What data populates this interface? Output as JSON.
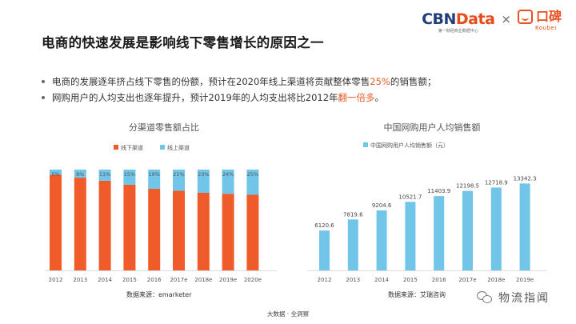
{
  "header": {
    "title": "电商的快速发展是影响线下零售增长的原因之一",
    "brand_cbn": "CBN",
    "brand_data": "Data",
    "brand_cbn_sub": "第一财经商业数据中心",
    "brand_separator": "×",
    "brand_koubei": "口碑",
    "brand_koubei_sub": "Koubei"
  },
  "bullets": [
    {
      "before": "电商的发展逐年挤占线下零售的份额，预计在2020年线上渠道将贡献整体零售",
      "highlight": "25%",
      "after": "的销售额；"
    },
    {
      "before": "网购用户的人均支出也逐年提升，预计2019年的人均支出将比2012年",
      "highlight": "翻一倍多",
      "after": "。"
    }
  ],
  "colors": {
    "offline": "#f05b2a",
    "online": "#71c5e8",
    "bar_blue": "#71c5e8",
    "highlight": "#e85a2a"
  },
  "chart_data": [
    {
      "type": "bar",
      "stacked": true,
      "percent": true,
      "title": "分渠道零售额占比",
      "categories": [
        "2012",
        "2013",
        "2014",
        "2015",
        "2016",
        "2017e",
        "2018e",
        "2019e",
        "2020e"
      ],
      "series": [
        {
          "name": "线下渠道",
          "values": [
            95,
            92,
            89,
            85,
            81,
            79,
            77,
            76,
            75
          ],
          "color": "#f05b2a"
        },
        {
          "name": "线上渠道",
          "values": [
            5,
            8,
            11,
            15,
            19,
            21,
            23,
            24,
            25
          ],
          "color": "#71c5e8"
        }
      ],
      "data_labels": [
        "5%",
        "8%",
        "11%",
        "15%",
        "19%",
        "21%",
        "23%",
        "24%",
        "25%"
      ],
      "legend_position": "top-left",
      "ylim": [
        0,
        100
      ],
      "source": "数据来源：emarketer"
    },
    {
      "type": "bar",
      "title": "中国网购用户人均销售额",
      "categories": [
        "2012",
        "2013",
        "2014",
        "2015",
        "2016",
        "2017e",
        "2018e",
        "2019e"
      ],
      "series": [
        {
          "name": "中国网购用户人均销售额（元）",
          "values": [
            6120.6,
            7819.6,
            9204.6,
            10521.7,
            11403.9,
            12198.5,
            12718.9,
            13342.3
          ],
          "color": "#71c5e8"
        }
      ],
      "data_labels": [
        "6120.6",
        "7819.6",
        "9204.6",
        "10521.7",
        "11403.9",
        "12198.5",
        "12718.9",
        "13342.3"
      ],
      "legend_position": "top-left",
      "ylim": [
        0,
        14000
      ],
      "source": "数据来源：艾瑞咨询"
    }
  ],
  "footer": {
    "text": "大数据 · 全洞察",
    "wechat": "物流指闻"
  }
}
